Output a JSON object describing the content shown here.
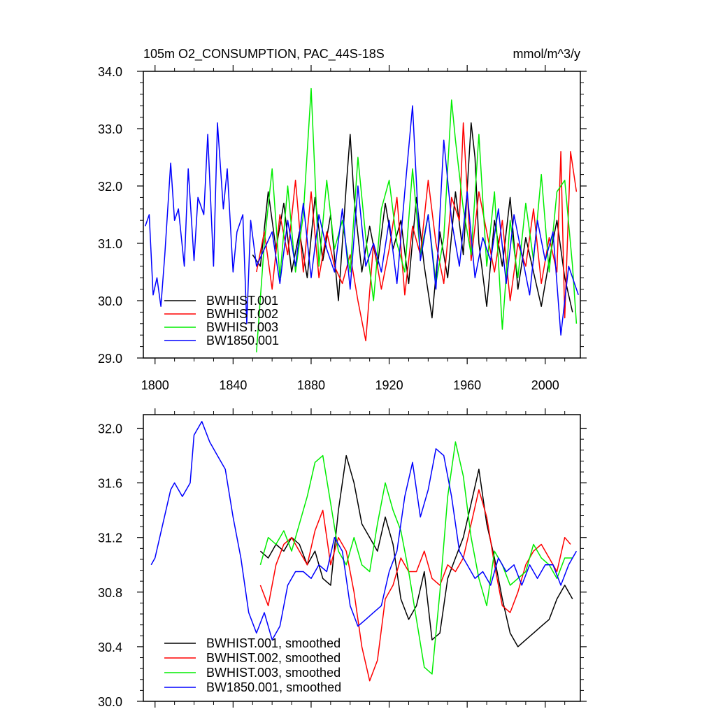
{
  "chart_data": [
    {
      "type": "line",
      "title": "105m O2_CONSUMPTION, PAC_44S-18S",
      "units": "mmol/m^3/y",
      "xlim": [
        1794,
        2018
      ],
      "ylim": [
        29.0,
        34.0
      ],
      "xticks": [
        1800,
        1840,
        1880,
        1920,
        1960,
        2000
      ],
      "xtick_labels": [
        "1800",
        "1840",
        "1880",
        "1920",
        "1960",
        "2000"
      ],
      "yticks": [
        29.0,
        30.0,
        31.0,
        32.0,
        33.0,
        34.0
      ],
      "ytick_labels": [
        "29.0",
        "30.0",
        "31.0",
        "32.0",
        "33.0",
        "34.0"
      ],
      "legend_position": "bottom-left",
      "series": [
        {
          "name": "BWHIST.001",
          "color": "#000000",
          "x": [
            1850,
            1854,
            1858,
            1862,
            1866,
            1870,
            1874,
            1878,
            1882,
            1886,
            1890,
            1894,
            1898,
            1900,
            1902,
            1906,
            1910,
            1914,
            1918,
            1922,
            1926,
            1930,
            1934,
            1938,
            1942,
            1946,
            1950,
            1954,
            1958,
            1962,
            1964,
            1966,
            1970,
            1974,
            1978,
            1982,
            1986,
            1990,
            1994,
            1998,
            2002,
            2006,
            2010,
            2014
          ],
          "y": [
            30.8,
            30.6,
            31.9,
            30.9,
            31.7,
            30.5,
            31.2,
            30.4,
            31.8,
            30.7,
            31.5,
            30.0,
            32.0,
            32.9,
            31.8,
            30.5,
            31.3,
            30.6,
            31.7,
            30.9,
            31.4,
            30.3,
            31.8,
            30.6,
            29.7,
            31.2,
            30.4,
            31.9,
            30.8,
            33.1,
            32.5,
            31.0,
            29.9,
            31.4,
            30.6,
            31.8,
            30.2,
            31.1,
            30.5,
            29.9,
            30.7,
            31.4,
            30.4,
            29.8
          ]
        },
        {
          "name": "BWHIST.002",
          "color": "#ff0000",
          "x": [
            1852,
            1856,
            1860,
            1864,
            1868,
            1872,
            1876,
            1880,
            1884,
            1888,
            1892,
            1896,
            1900,
            1904,
            1908,
            1912,
            1916,
            1920,
            1924,
            1928,
            1932,
            1936,
            1940,
            1944,
            1948,
            1952,
            1956,
            1958,
            1962,
            1966,
            1970,
            1974,
            1978,
            1982,
            1986,
            1990,
            1994,
            1998,
            2002,
            2006,
            2008,
            2010,
            2013,
            2016
          ],
          "y": [
            30.5,
            31.2,
            30.2,
            31.5,
            30.8,
            32.1,
            30.5,
            31.9,
            30.4,
            31.2,
            30.6,
            30.3,
            30.8,
            30.0,
            29.3,
            31.0,
            30.2,
            30.9,
            31.8,
            30.1,
            31.3,
            30.8,
            32.1,
            31.0,
            30.3,
            31.8,
            31.4,
            33.1,
            30.7,
            31.9,
            31.2,
            30.5,
            31.4,
            30.0,
            31.0,
            30.6,
            31.6,
            30.3,
            31.1,
            30.5,
            32.6,
            29.7,
            32.6,
            31.9
          ]
        },
        {
          "name": "BWHIST.003",
          "color": "#00ee00",
          "x": [
            1852,
            1856,
            1860,
            1864,
            1868,
            1872,
            1876,
            1880,
            1884,
            1888,
            1892,
            1896,
            1900,
            1904,
            1908,
            1912,
            1916,
            1920,
            1924,
            1928,
            1932,
            1936,
            1940,
            1944,
            1948,
            1952,
            1954,
            1958,
            1962,
            1966,
            1970,
            1974,
            1978,
            1982,
            1986,
            1990,
            1994,
            1998,
            2002,
            2006,
            2010,
            2014,
            2016
          ],
          "y": [
            29.1,
            31.0,
            32.3,
            30.4,
            32.0,
            30.5,
            31.5,
            33.7,
            30.6,
            32.1,
            30.9,
            31.4,
            30.5,
            32.5,
            31.1,
            30.0,
            31.6,
            32.1,
            31.0,
            30.5,
            32.3,
            30.8,
            31.5,
            30.3,
            31.1,
            33.5,
            32.8,
            31.6,
            30.8,
            32.9,
            30.6,
            31.9,
            29.5,
            31.4,
            30.4,
            31.7,
            30.7,
            32.2,
            30.5,
            31.9,
            32.1,
            30.6,
            29.6
          ]
        },
        {
          "name": "BW1850.001",
          "color": "#0000ff",
          "x": [
            1795,
            1797,
            1799,
            1801,
            1803,
            1805,
            1808,
            1810,
            1812,
            1815,
            1817,
            1820,
            1822,
            1825,
            1827,
            1830,
            1832,
            1835,
            1837,
            1840,
            1842,
            1845,
            1847,
            1849,
            1852,
            1856,
            1860,
            1864,
            1868,
            1872,
            1876,
            1880,
            1884,
            1888,
            1892,
            1896,
            1900,
            1904,
            1908,
            1912,
            1916,
            1920,
            1924,
            1928,
            1932,
            1936,
            1940,
            1944,
            1948,
            1952,
            1956,
            1960,
            1964,
            1968,
            1972,
            1976,
            1980,
            1984,
            1988,
            1992,
            1996,
            2000,
            2004,
            2008,
            2012,
            2017
          ],
          "y": [
            31.3,
            31.5,
            30.1,
            30.4,
            29.9,
            30.8,
            32.4,
            31.4,
            31.6,
            30.6,
            32.3,
            30.7,
            31.8,
            31.5,
            32.9,
            30.6,
            33.1,
            31.6,
            32.3,
            30.5,
            31.2,
            31.5,
            29.6,
            31.4,
            30.6,
            30.9,
            31.2,
            30.3,
            31.4,
            30.6,
            31.7,
            30.4,
            31.5,
            30.9,
            30.5,
            31.6,
            30.2,
            32.0,
            30.6,
            31.0,
            30.5,
            31.4,
            30.3,
            31.9,
            33.4,
            30.7,
            31.5,
            30.2,
            32.8,
            31.4,
            30.6,
            31.9,
            30.4,
            31.1,
            30.7,
            31.6,
            30.3,
            31.5,
            30.8,
            30.1,
            31.4,
            30.7,
            31.2,
            29.4,
            30.6,
            30.1
          ]
        }
      ]
    },
    {
      "type": "line",
      "xlim": [
        1794,
        2018
      ],
      "ylim": [
        30.0,
        32.1
      ],
      "xticks": [
        1800,
        1840,
        1880,
        1920,
        1960,
        2000
      ],
      "yticks": [
        30.0,
        30.4,
        30.8,
        31.2,
        31.6,
        32.0
      ],
      "ytick_labels": [
        "30.0",
        "30.4",
        "30.8",
        "31.2",
        "31.6",
        "32.0"
      ],
      "legend_position": "bottom-left",
      "series": [
        {
          "name": "BWHIST.001, smoothed",
          "color": "#000000",
          "x": [
            1854,
            1858,
            1862,
            1866,
            1870,
            1874,
            1878,
            1882,
            1886,
            1890,
            1894,
            1898,
            1902,
            1906,
            1910,
            1914,
            1918,
            1922,
            1926,
            1930,
            1934,
            1938,
            1942,
            1946,
            1950,
            1954,
            1958,
            1962,
            1966,
            1970,
            1974,
            1978,
            1982,
            1986,
            1990,
            1994,
            1998,
            2002,
            2006,
            2010,
            2014
          ],
          "y": [
            31.1,
            31.05,
            31.15,
            31.1,
            31.2,
            31.15,
            31.0,
            31.1,
            30.9,
            30.85,
            31.4,
            31.8,
            31.6,
            31.3,
            31.2,
            31.1,
            31.35,
            31.15,
            30.75,
            30.6,
            30.7,
            30.95,
            30.45,
            30.5,
            30.9,
            31.05,
            31.2,
            31.45,
            31.7,
            31.3,
            31.05,
            30.75,
            30.5,
            30.4,
            30.45,
            30.5,
            30.55,
            30.6,
            30.75,
            30.85,
            30.75
          ]
        },
        {
          "name": "BWHIST.002, smoothed",
          "color": "#ff0000",
          "x": [
            1854,
            1858,
            1862,
            1866,
            1870,
            1874,
            1878,
            1882,
            1886,
            1890,
            1894,
            1898,
            1902,
            1906,
            1910,
            1914,
            1918,
            1922,
            1926,
            1930,
            1934,
            1938,
            1942,
            1946,
            1950,
            1954,
            1958,
            1962,
            1966,
            1970,
            1974,
            1978,
            1982,
            1986,
            1990,
            1994,
            1998,
            2002,
            2006,
            2010,
            2013
          ],
          "y": [
            30.85,
            30.7,
            31.0,
            31.15,
            31.2,
            31.1,
            31.0,
            31.25,
            31.4,
            31.0,
            31.2,
            31.1,
            30.8,
            30.4,
            30.15,
            30.3,
            30.75,
            30.85,
            31.05,
            30.95,
            30.95,
            31.1,
            30.9,
            30.85,
            31.0,
            30.95,
            31.05,
            31.3,
            31.55,
            31.35,
            31.0,
            30.7,
            30.65,
            30.8,
            31.0,
            31.1,
            31.15,
            31.05,
            30.95,
            31.2,
            31.15
          ]
        },
        {
          "name": "BWHIST.003, smoothed",
          "color": "#00ee00",
          "x": [
            1854,
            1858,
            1862,
            1866,
            1870,
            1874,
            1878,
            1882,
            1886,
            1890,
            1894,
            1898,
            1902,
            1906,
            1910,
            1914,
            1918,
            1922,
            1926,
            1930,
            1934,
            1938,
            1942,
            1946,
            1950,
            1954,
            1958,
            1962,
            1966,
            1970,
            1974,
            1978,
            1982,
            1986,
            1990,
            1994,
            1998,
            2002,
            2006,
            2010,
            2014
          ],
          "y": [
            31.0,
            31.2,
            31.15,
            31.25,
            31.1,
            31.3,
            31.5,
            31.75,
            31.8,
            31.45,
            31.1,
            31.0,
            31.2,
            31.0,
            30.95,
            31.3,
            31.6,
            31.4,
            31.25,
            30.95,
            30.6,
            30.25,
            30.2,
            30.8,
            31.5,
            31.9,
            31.65,
            31.2,
            30.9,
            30.7,
            31.1,
            31.0,
            30.85,
            30.9,
            30.95,
            31.15,
            31.05,
            31.0,
            30.9,
            31.05,
            31.05
          ]
        },
        {
          "name": "BW1850.001, smoothed",
          "color": "#0000ff",
          "x": [
            1798,
            1800,
            1804,
            1808,
            1810,
            1814,
            1818,
            1820,
            1824,
            1828,
            1832,
            1836,
            1840,
            1844,
            1848,
            1852,
            1856,
            1860,
            1864,
            1868,
            1872,
            1876,
            1880,
            1884,
            1888,
            1892,
            1896,
            1900,
            1904,
            1908,
            1912,
            1916,
            1920,
            1924,
            1928,
            1932,
            1936,
            1940,
            1944,
            1948,
            1952,
            1956,
            1960,
            1964,
            1968,
            1972,
            1976,
            1980,
            1984,
            1988,
            1992,
            1996,
            2000,
            2004,
            2008,
            2012,
            2016
          ],
          "y": [
            31.0,
            31.05,
            31.3,
            31.55,
            31.6,
            31.5,
            31.6,
            31.95,
            32.05,
            31.9,
            31.8,
            31.7,
            31.35,
            31.05,
            30.65,
            30.5,
            30.65,
            30.45,
            30.55,
            30.85,
            30.95,
            30.95,
            30.9,
            31.0,
            30.95,
            31.2,
            31.1,
            30.7,
            30.55,
            30.6,
            30.65,
            30.7,
            30.95,
            31.1,
            31.5,
            31.75,
            31.35,
            31.55,
            31.85,
            31.8,
            31.5,
            31.1,
            31.0,
            30.9,
            30.95,
            30.85,
            31.05,
            30.95,
            31.0,
            30.85,
            31.0,
            30.9,
            31.0,
            31.0,
            30.85,
            31.0,
            31.1
          ]
        }
      ]
    }
  ]
}
